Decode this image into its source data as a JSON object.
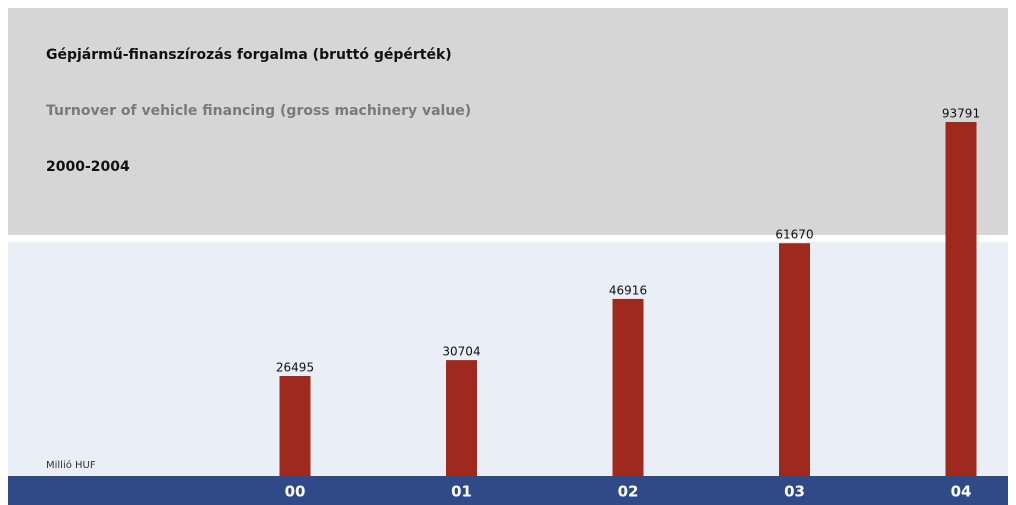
{
  "chart_data": {
    "type": "bar",
    "title": "Gépjármű-finanszírozás forgalma (bruttó gépérték)",
    "subtitle": "Turnover of vehicle financing (gross machinery value)",
    "period": "2000-2004",
    "unit": "Millió HUF",
    "categories": [
      "00",
      "01",
      "02",
      "03",
      "04"
    ],
    "values": [
      26495,
      30704,
      46916,
      61670,
      93791
    ],
    "color": "#a0291e"
  }
}
